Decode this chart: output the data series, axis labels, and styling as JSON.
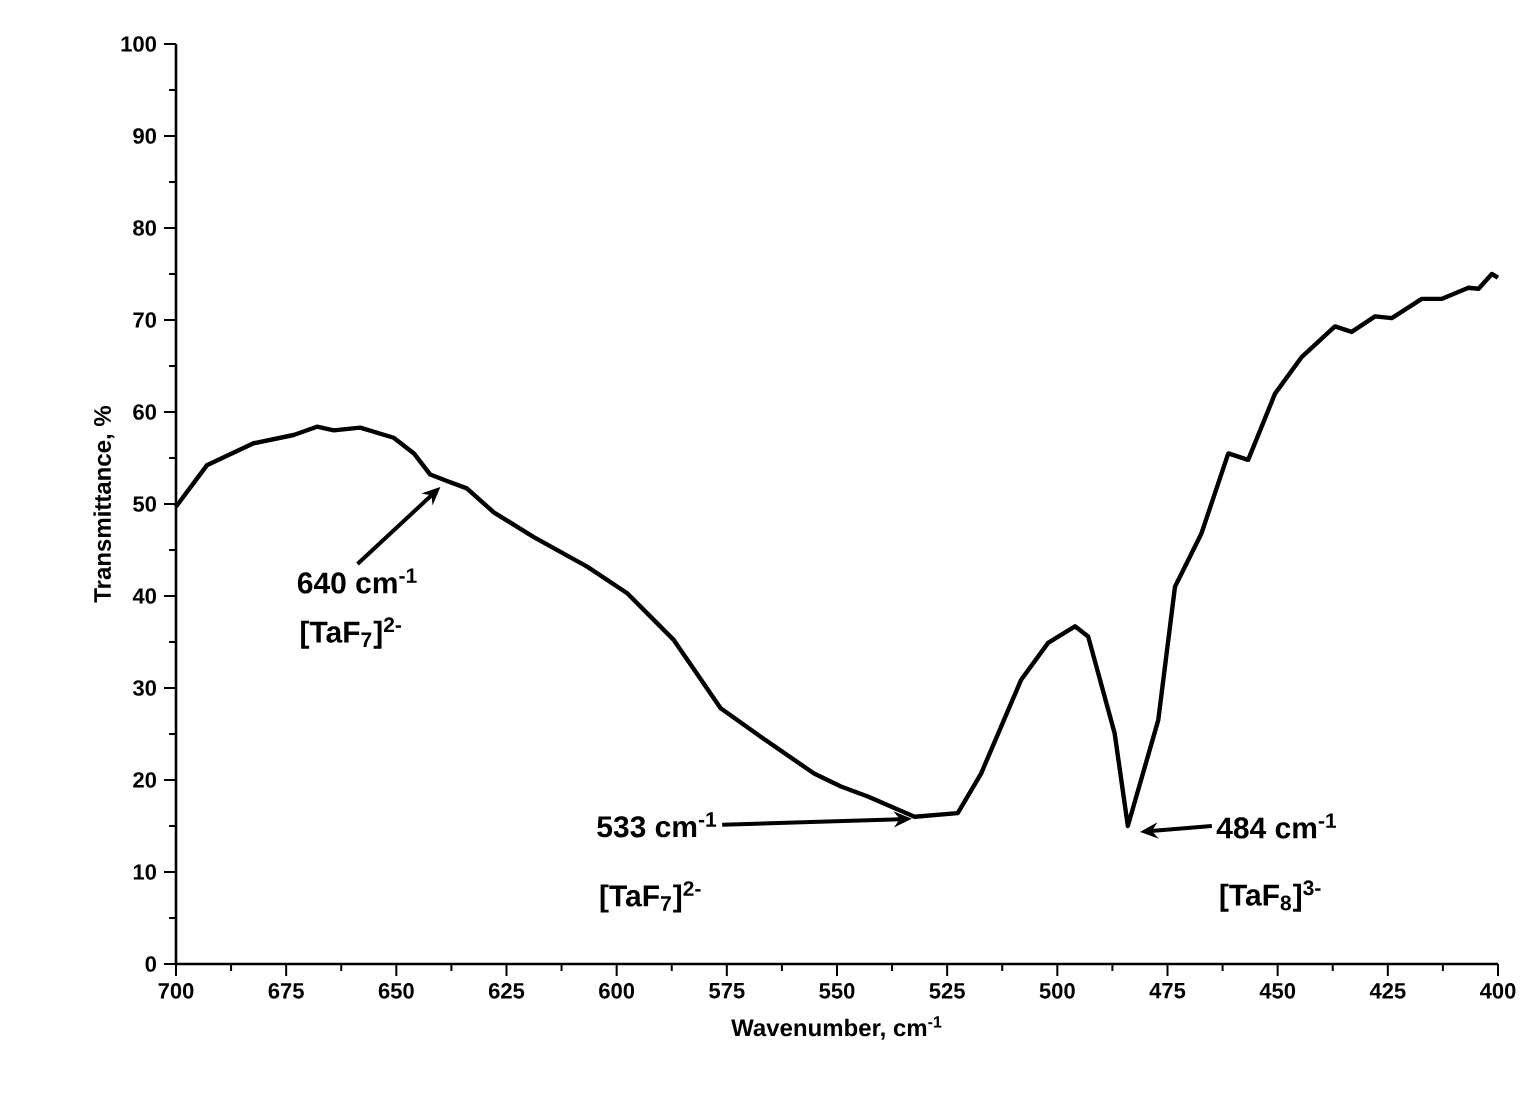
{
  "chart_data": {
    "type": "line",
    "xlabel": "Wavenumber, cm$^{-1}$",
    "ylabel": "Transmittance, %",
    "xlim": [
      700,
      400
    ],
    "ylim": [
      0,
      100
    ],
    "xticks": [
      700,
      675,
      650,
      625,
      600,
      575,
      550,
      525,
      500,
      475,
      450,
      425,
      400
    ],
    "yticks": [
      0,
      10,
      20,
      30,
      40,
      50,
      60,
      70,
      80,
      90,
      100
    ],
    "x": [
      700,
      693,
      682.4,
      673.3,
      668,
      664.2,
      658.2,
      650.6,
      646,
      642.3,
      638.5,
      634,
      627.9,
      618.8,
      606.7,
      597.6,
      587,
      576.4,
      567.3,
      555.2,
      549.1,
      543,
      532.4,
      522.6,
      517.3,
      508.2,
      502.1,
      496,
      493,
      487,
      484,
      477.1,
      473.3,
      467.3,
      461.2,
      456.7,
      450.6,
      444.5,
      437,
      433.2,
      427.9,
      424.1,
      417.3,
      412.7,
      406.7,
      404.4,
      401.4,
      400
    ],
    "values": [
      49.7,
      54.2,
      56.6,
      57.5,
      58.4,
      58.0,
      58.3,
      57.2,
      55.5,
      53.2,
      52.5,
      51.7,
      49.1,
      46.4,
      43.2,
      40.3,
      35.2,
      27.8,
      24.7,
      20.7,
      19.3,
      18.2,
      16.0,
      16.4,
      20.7,
      30.9,
      34.9,
      36.7,
      35.6,
      25.1,
      15.0,
      26.5,
      41,
      46.8,
      55.5,
      54.8,
      62,
      66,
      69.3,
      68.7,
      70.4,
      70.2,
      72.3,
      72.3,
      73.5,
      73.4,
      75,
      74.6
    ],
    "color": "#000000",
    "annotations": [
      {
        "text": "640 cm$^{-1}$",
        "x": 640,
        "y": 52.5
      },
      "[TaF$_{7}$]$^{2-}$",
      {
        "text": "533 cm$^{-1}$",
        "x": 533,
        "y": 16
      },
      "[TaF$_{7}$]$^{2-}$",
      {
        "text": "484 cm$^{-1}$",
        "x": 484,
        "y": 15
      },
      "[TaF$_{8}$]$^{3-}$"
    ]
  }
}
